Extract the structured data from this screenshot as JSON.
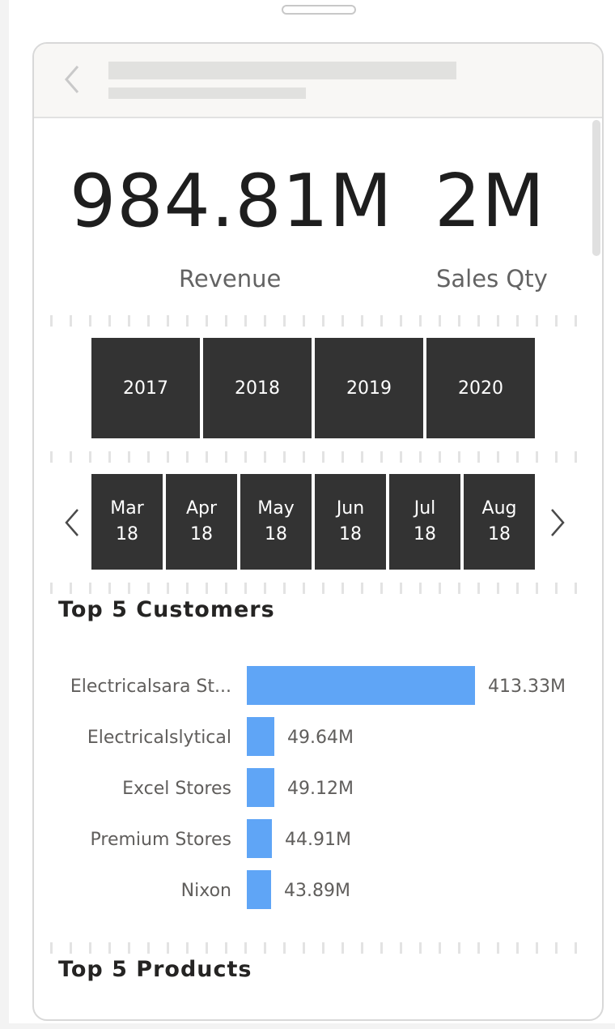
{
  "kpis": {
    "revenue": {
      "value": "984.81M",
      "label": "Revenue"
    },
    "sales_qty": {
      "value": "2M",
      "label": "Sales Qty"
    }
  },
  "year_slicer": {
    "items": [
      "2017",
      "2018",
      "2019",
      "2020"
    ]
  },
  "month_slicer": {
    "items": [
      {
        "month": "Mar",
        "year": "18"
      },
      {
        "month": "Apr",
        "year": "18"
      },
      {
        "month": "May",
        "year": "18"
      },
      {
        "month": "Jun",
        "year": "18"
      },
      {
        "month": "Jul",
        "year": "18"
      },
      {
        "month": "Aug",
        "year": "18"
      }
    ]
  },
  "top_customers": {
    "title": "Top 5 Customers",
    "chart_data": {
      "type": "bar",
      "orientation": "horizontal",
      "categories": [
        "Electricalsara St...",
        "Electricalslytical",
        "Excel Stores",
        "Premium Stores",
        "Nixon"
      ],
      "values": [
        413.33,
        49.64,
        49.12,
        44.91,
        43.89
      ],
      "value_labels": [
        "413.33M",
        "49.64M",
        "49.12M",
        "44.91M",
        "43.89M"
      ],
      "unit": "M",
      "bar_color": "#5fa5f6"
    }
  },
  "top_products": {
    "title": "Top 5 Products"
  },
  "colors": {
    "tile_bg": "#333333",
    "tile_text": "#ffffff",
    "bar": "#5fa5f6"
  },
  "icons": {
    "back": "chevron-left-icon",
    "prev": "chevron-left-icon",
    "next": "chevron-right-icon"
  }
}
